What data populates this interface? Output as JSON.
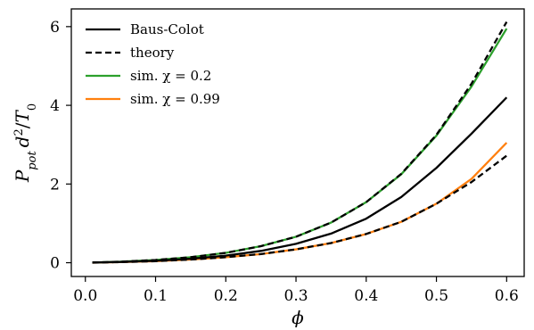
{
  "chart_data": {
    "type": "line",
    "xlabel": "ϕ",
    "ylabel": "P_pot d²/T₀",
    "ylabel_parts": {
      "P": "P",
      "sub": "pot",
      "d": "d",
      "sup": "2",
      "slash": "/",
      "T": "T",
      "Tsub": "0"
    },
    "xlim": [
      -0.02,
      0.625
    ],
    "ylim": [
      -0.35,
      6.45
    ],
    "xticks": [
      0.0,
      0.1,
      0.2,
      0.3,
      0.4,
      0.5,
      0.6
    ],
    "xtick_labels": [
      "0.0",
      "0.1",
      "0.2",
      "0.3",
      "0.4",
      "0.5",
      "0.6"
    ],
    "yticks": [
      0,
      2,
      4,
      6
    ],
    "ytick_labels": [
      "0",
      "2",
      "4",
      "6"
    ],
    "grid": false,
    "legend_position": "top-left",
    "x": [
      0.01,
      0.05,
      0.1,
      0.15,
      0.2,
      0.25,
      0.3,
      0.35,
      0.4,
      0.45,
      0.5,
      0.55,
      0.6
    ],
    "series": [
      {
        "name": "Baus-Colot",
        "color": "#000000",
        "dash": "solid",
        "values": [
          0.005,
          0.02,
          0.05,
          0.1,
          0.18,
          0.3,
          0.48,
          0.74,
          1.12,
          1.67,
          2.41,
          3.28,
          4.2
        ]
      },
      {
        "name": "theory",
        "color": "#000000",
        "dash": "dashed",
        "values": [
          0.003,
          0.015,
          0.04,
          0.08,
          0.14,
          0.22,
          0.34,
          0.5,
          0.73,
          1.04,
          1.5,
          2.05,
          2.72
        ]
      },
      {
        "name": "sim. χ = 0.2",
        "color": "#2ca02c",
        "dash": "solid",
        "values": [
          0.005,
          0.025,
          0.07,
          0.14,
          0.25,
          0.42,
          0.66,
          1.02,
          1.54,
          2.25,
          3.23,
          4.48,
          5.95
        ]
      },
      {
        "name": "sim. χ = 0.99",
        "color": "#ff7f0e",
        "dash": "solid",
        "values": [
          0.003,
          0.015,
          0.04,
          0.08,
          0.14,
          0.22,
          0.34,
          0.5,
          0.73,
          1.04,
          1.5,
          2.13,
          3.05
        ]
      }
    ],
    "theory_high_branch": {
      "color": "#000000",
      "dash": "dashed",
      "values": [
        0.005,
        0.025,
        0.07,
        0.14,
        0.25,
        0.42,
        0.66,
        1.02,
        1.54,
        2.26,
        3.25,
        4.55,
        6.12
      ]
    }
  }
}
